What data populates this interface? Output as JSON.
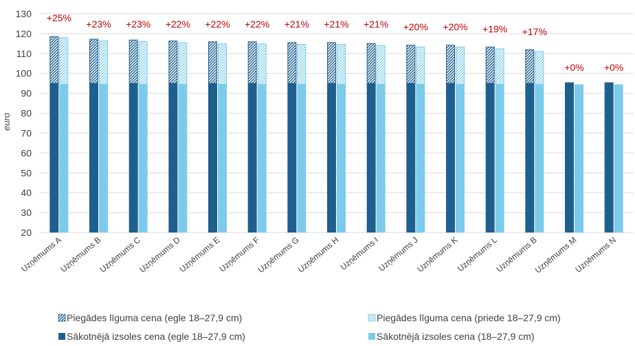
{
  "chart_data": {
    "type": "bar",
    "ylabel": "euro",
    "ylim": [
      20,
      130
    ],
    "yticks": [
      20,
      30,
      40,
      50,
      60,
      70,
      80,
      90,
      100,
      110,
      120,
      130
    ],
    "grid": true,
    "legend_position": "bottom",
    "categories": [
      "Uzņēmums A",
      "Uzņēmums B",
      "Uzņēmums C",
      "Uzņēmums D",
      "Uzņēmums E",
      "Uzņēmums F",
      "Uzņēmums G",
      "Uzņēmums H",
      "Uzņēmums I",
      "Uzņēmums J",
      "Uzņēmums K",
      "Uzņēmums L",
      "Uzņēmums B",
      "Uzņēmums M",
      "Uzņēmums N"
    ],
    "change_labels": [
      "+25%",
      "+23%",
      "+23%",
      "+22%",
      "+22%",
      "+22%",
      "+21%",
      "+21%",
      "+21%",
      "+20%",
      "+20%",
      "+19%",
      "+17%",
      "+0%",
      "+0%"
    ],
    "series": [
      {
        "name": "Sākotnējā izsoles cena (egle 18–27,9 cm)",
        "values": [
          95,
          95,
          95,
          95,
          95,
          95,
          95,
          95,
          95,
          95,
          95,
          95,
          95,
          95.5,
          95.5
        ]
      },
      {
        "name": "Piegādes līguma cena (egle 18–27,9 cm)",
        "values": [
          118.5,
          117.2,
          116.8,
          116.3,
          115.9,
          115.9,
          115.5,
          115.5,
          115.0,
          114.2,
          114.2,
          113.3,
          111.9,
          95.5,
          95.5
        ]
      },
      {
        "name": "Sākotnējā izsoles cena (18–27,9 cm)",
        "values": [
          94.5,
          94.5,
          94.5,
          94.5,
          94.5,
          94.5,
          94.5,
          94.5,
          94.5,
          94.5,
          94.5,
          94.5,
          94.5,
          94.5,
          94.5
        ]
      },
      {
        "name": "Piegādes līguma cena (priede 18–27,9 cm)",
        "values": [
          117.9,
          116.4,
          116.0,
          115.4,
          114.9,
          114.9,
          114.6,
          114.6,
          114.1,
          113.3,
          113.3,
          112.4,
          111.0,
          94.5,
          94.5
        ]
      }
    ],
    "colors": {
      "egle_solid": "#1f5f8e",
      "egle_hatch": "#1f5f8e",
      "priede_solid": "#7ccbeb",
      "priede_hatch": "#7ccbeb",
      "grid": "#d9d9d9",
      "label": "#c00000"
    }
  }
}
